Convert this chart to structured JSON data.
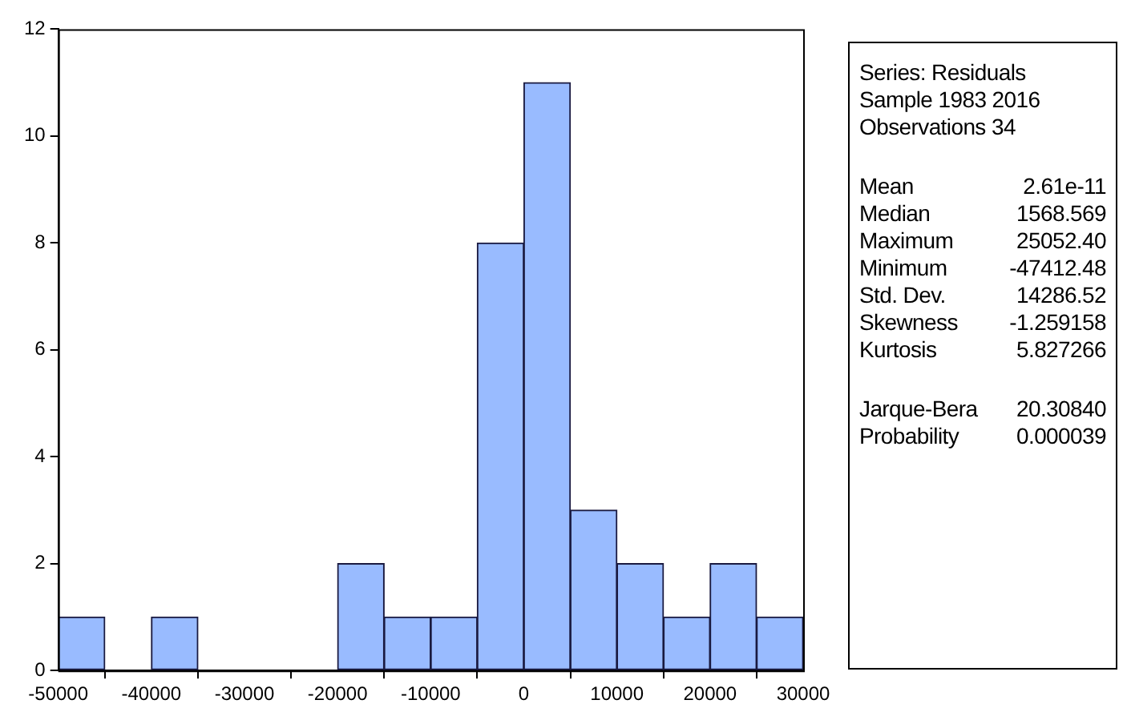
{
  "chart_data": [
    {
      "type": "histogram",
      "bins": [
        -50000,
        -45000,
        -40000,
        -35000,
        -30000,
        -25000,
        -20000,
        -15000,
        -10000,
        -5000,
        0,
        5000,
        10000,
        15000,
        20000,
        25000,
        30000
      ],
      "values": [
        1,
        0,
        1,
        0,
        0,
        0,
        2,
        1,
        1,
        8,
        11,
        3,
        2,
        1,
        2,
        1
      ],
      "color": "#99bbff",
      "xlim": [
        -50000,
        30000
      ],
      "xticks": [
        -50000,
        -40000,
        -30000,
        -20000,
        -10000,
        0,
        10000,
        20000,
        30000
      ],
      "ylim": [
        0,
        12
      ],
      "yticks": [
        0,
        2,
        4,
        6,
        8,
        10,
        12
      ],
      "grid": false
    },
    {
      "type": "other",
      "annotations": [
        "Series: Residuals",
        "Sample 1983 2016",
        "Observations 34",
        "Mean",
        "2.61e-11",
        "Median",
        "1568.569",
        "Maximum",
        "25052.40",
        "Minimum",
        "-47412.48",
        "Std. Dev.",
        "14286.52",
        "Skewness",
        "-1.259158",
        "Kurtosis",
        "5.827266",
        "Jarque-Bera",
        "20.30840",
        "Probability",
        "0.000039"
      ]
    }
  ]
}
